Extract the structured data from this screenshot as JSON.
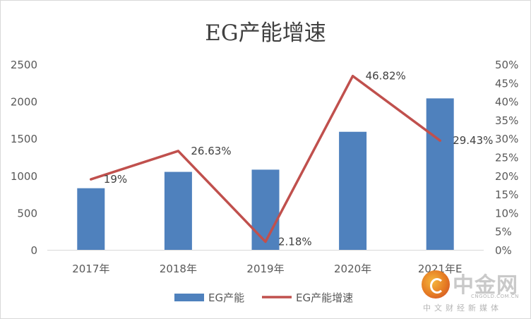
{
  "chart_data": {
    "type": "bar+line",
    "title": "EG产能增速",
    "categories": [
      "2017年",
      "2018年",
      "2019年",
      "2020年",
      "2021年E"
    ],
    "series": [
      {
        "name": "EG产能",
        "type": "bar",
        "axis": "left",
        "color": "#4f81bd",
        "values": [
          830,
          1050,
          1080,
          1590,
          2040
        ]
      },
      {
        "name": "EG产能增速",
        "type": "line",
        "axis": "right",
        "color": "#c0504d",
        "values": [
          19,
          26.63,
          2.18,
          46.82,
          29.43
        ],
        "labels": [
          "19%",
          "26.63%",
          "2.18%",
          "46.82%",
          "29.43%"
        ]
      }
    ],
    "y_left": {
      "min": 0,
      "max": 2500,
      "ticks": [
        0,
        500,
        1000,
        1500,
        2000,
        2500
      ],
      "tick_labels": [
        "0",
        "500",
        "1000",
        "1500",
        "2000",
        "2500"
      ]
    },
    "y_right": {
      "min": 0,
      "max": 50,
      "ticks": [
        0,
        5,
        10,
        15,
        20,
        25,
        30,
        35,
        40,
        45,
        50
      ],
      "tick_labels": [
        "0%",
        "5%",
        "10%",
        "15%",
        "20%",
        "25%",
        "30%",
        "35%",
        "40%",
        "45%",
        "50%"
      ]
    },
    "grid": false,
    "legend_position": "bottom"
  },
  "watermark": {
    "name": "中金网",
    "domain": "CNGOLD.COM.CN",
    "slogan": "中文财经新媒体"
  }
}
